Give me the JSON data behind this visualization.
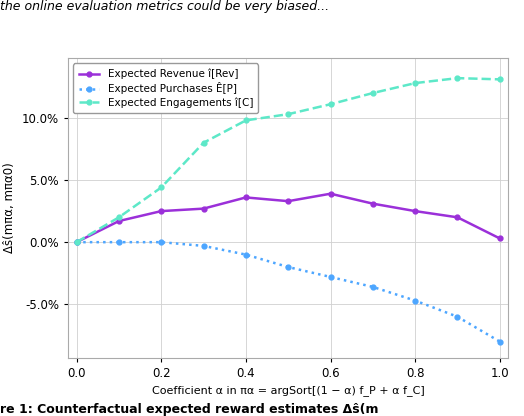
{
  "alpha": [
    0.0,
    0.1,
    0.2,
    0.3,
    0.4,
    0.5,
    0.6,
    0.7,
    0.8,
    0.9,
    1.0
  ],
  "revenue": [
    0.0,
    0.017,
    0.025,
    0.027,
    0.036,
    0.033,
    0.039,
    0.031,
    0.025,
    0.02,
    0.003
  ],
  "purchases": [
    0.0,
    0.0,
    0.0,
    -0.003,
    -0.01,
    -0.02,
    -0.028,
    -0.036,
    -0.047,
    -0.06,
    -0.08
  ],
  "engagements": [
    0.0,
    0.02,
    0.044,
    0.08,
    0.098,
    0.103,
    0.111,
    0.12,
    0.128,
    0.132,
    0.131
  ],
  "revenue_color": "#9b30d9",
  "purchases_color": "#4da6ff",
  "engagements_color": "#5de8c8",
  "xlabel": "Coefficient α in πα = argSort[(1 − α) f_P + α f_C]",
  "ylabel": "Δŝ(mπα, mπα0)",
  "legend_revenue": "Expected Revenue î[Rev]",
  "legend_purchases": "Expected Purchases Ê[P]",
  "legend_engagements": "Expected Engagements î[C]",
  "ylim": [
    -0.093,
    0.148
  ],
  "xlim": [
    -0.02,
    1.02
  ],
  "yticks": [
    -0.05,
    0.0,
    0.05,
    0.1
  ],
  "xticks": [
    0.0,
    0.2,
    0.4,
    0.6,
    0.8,
    1.0
  ],
  "background_color": "#ffffff",
  "grid_color": "#d0d0d0",
  "top_text": "the online evaluation metrics could be very biased...",
  "bottom_text": "re 1: Counterfactual expected reward estimates Δŝ(m"
}
